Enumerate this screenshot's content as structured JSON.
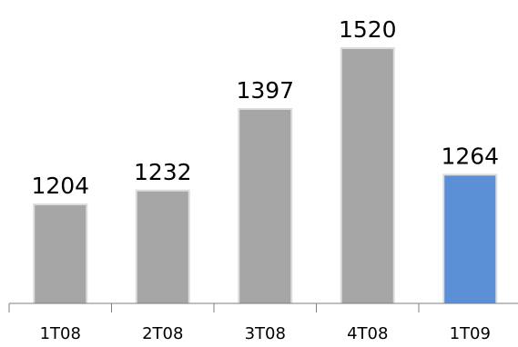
{
  "chart_data": {
    "type": "bar",
    "categories": [
      "1T08",
      "2T08",
      "3T08",
      "4T08",
      "1T09"
    ],
    "values": [
      1204,
      1232,
      1397,
      1520,
      1264
    ],
    "data_labels": [
      "1204",
      "1232",
      "1397",
      "1520",
      "1264"
    ],
    "highlight_index": 4,
    "colors": {
      "default": "#a6a6a6",
      "highlight": "#5b8fd6"
    },
    "title": "",
    "xlabel": "",
    "ylabel": "",
    "grid": false,
    "legend": "none"
  }
}
